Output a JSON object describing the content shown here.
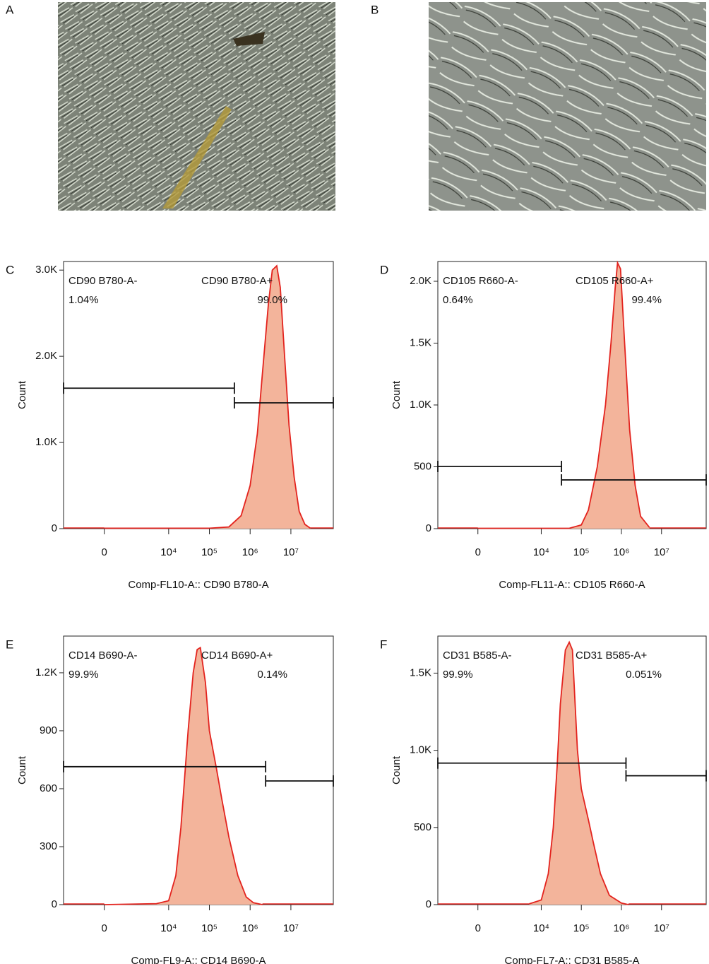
{
  "panels": [
    "A",
    "B"
  ],
  "chart_data": [
    {
      "type": "histogram",
      "panel": "C",
      "x_label": "Comp-FL10-A:: CD90 B780-A",
      "y_label": "Count",
      "color": "#e3231e",
      "fill": "#f3b49b",
      "xlim": [
        -2600,
        110000000
      ],
      "xticks": [
        0,
        {
          "value": 10000,
          "label": "10⁴"
        },
        {
          "value": 100000,
          "label": "10⁵"
        },
        {
          "value": 1000000,
          "label": "10⁶"
        },
        {
          "value": 10000000,
          "label": "10⁷"
        }
      ],
      "ylim": [
        0,
        3100
      ],
      "yticks": [
        0,
        {
          "value": 1000,
          "label": "1.0K"
        },
        {
          "value": 2000,
          "label": "2.0K"
        },
        {
          "value": 3000,
          "label": "3.0K"
        }
      ],
      "x": [
        0,
        100000,
        300000,
        600000,
        1000000,
        1500000,
        2000000,
        2800000,
        3500000,
        4500000,
        5500000,
        7000000,
        9000000,
        12000000,
        16000000,
        22000000,
        30000000
      ],
      "values": [
        5,
        5,
        20,
        150,
        500,
        1100,
        1800,
        2600,
        3000,
        3050,
        2800,
        2000,
        1200,
        600,
        200,
        50,
        5
      ],
      "gates": {
        "names": [
          "CD90 B780-A-",
          "CD90 B780-A+"
        ],
        "values": [
          1.04,
          99.0
        ],
        "value_labels": [
          "1.04%",
          "99.0%"
        ],
        "ranges": [
          [
            -2600,
            410000
          ],
          [
            410000,
            110000000
          ]
        ],
        "levels": [
          1630,
          1460
        ]
      }
    },
    {
      "type": "histogram",
      "panel": "D",
      "x_label": "Comp-FL11-A:: CD105 R660-A",
      "y_label": "Count",
      "color": "#e3231e",
      "fill": "#f3b49b",
      "xlim": [
        -2600,
        130000000
      ],
      "xticks": [
        0,
        {
          "value": 10000,
          "label": "10⁴"
        },
        {
          "value": 100000,
          "label": "10⁵"
        },
        {
          "value": 1000000,
          "label": "10⁶"
        },
        {
          "value": 10000000,
          "label": "10⁷"
        }
      ],
      "ylim": [
        0,
        2160
      ],
      "yticks": [
        0,
        500,
        {
          "value": 1000,
          "label": "1.0K"
        },
        {
          "value": 1500,
          "label": "1.5K"
        },
        {
          "value": 2000,
          "label": "2.0K"
        }
      ],
      "x": [
        0,
        50000,
        100000,
        150000,
        250000,
        400000,
        550000,
        700000,
        800000,
        950000,
        1200000,
        1600000,
        2200000,
        3000000,
        5000000
      ],
      "values": [
        3,
        3,
        30,
        150,
        500,
        1000,
        1500,
        1950,
        2150,
        2100,
        1500,
        800,
        350,
        100,
        10
      ],
      "gates": {
        "names": [
          "CD105 R660-A-",
          "CD105 R660-A+"
        ],
        "values": [
          0.64,
          99.4
        ],
        "value_labels": [
          "0.64%",
          "99.4%"
        ],
        "ranges": [
          [
            -2600,
            32000
          ],
          [
            32000,
            130000000
          ]
        ],
        "levels": [
          503,
          394
        ]
      }
    },
    {
      "type": "histogram",
      "panel": "E",
      "x_label": "Comp-FL9-A:: CD14 B690-A",
      "y_label": "Count",
      "color": "#e3231e",
      "fill": "#f3b49b",
      "xlim": [
        -2600,
        110000000
      ],
      "xticks": [
        0,
        {
          "value": 10000,
          "label": "10⁴"
        },
        {
          "value": 100000,
          "label": "10⁵"
        },
        {
          "value": 1000000,
          "label": "10⁶"
        },
        {
          "value": 10000000,
          "label": "10⁷"
        }
      ],
      "ylim": [
        0,
        1390
      ],
      "yticks": [
        0,
        300,
        600,
        900,
        {
          "value": 1200,
          "label": "1.2K"
        }
      ],
      "x": [
        0,
        5000,
        10000,
        15000,
        20000,
        30000,
        40000,
        50000,
        60000,
        80000,
        100000,
        150000,
        200000,
        300000,
        500000,
        800000,
        1200000,
        2000000
      ],
      "values": [
        0,
        5,
        20,
        150,
        400,
        900,
        1200,
        1320,
        1330,
        1150,
        900,
        700,
        550,
        350,
        150,
        40,
        10,
        0
      ],
      "gates": {
        "names": [
          "CD14 B690-A-",
          "CD14 B690-A+"
        ],
        "values": [
          99.9,
          0.14
        ],
        "value_labels": [
          "99.9%",
          "0.14%"
        ],
        "ranges": [
          [
            -2600,
            2400000
          ],
          [
            2400000,
            110000000
          ]
        ],
        "levels": [
          714,
          640
        ]
      }
    },
    {
      "type": "histogram",
      "panel": "F",
      "x_label": "Comp-FL7-A:: CD31 B585-A",
      "y_label": "Count",
      "color": "#e3231e",
      "fill": "#f3b49b",
      "xlim": [
        -2600,
        130000000
      ],
      "xticks": [
        0,
        {
          "value": 10000,
          "label": "10⁴"
        },
        {
          "value": 100000,
          "label": "10⁵"
        },
        {
          "value": 1000000,
          "label": "10⁶"
        },
        {
          "value": 10000000,
          "label": "10⁷"
        }
      ],
      "ylim": [
        0,
        1740
      ],
      "yticks": [
        0,
        500,
        {
          "value": 1000,
          "label": "1.0K"
        },
        {
          "value": 1500,
          "label": "1.5K"
        }
      ],
      "x": [
        5000,
        10000,
        15000,
        20000,
        25000,
        30000,
        40000,
        50000,
        60000,
        70000,
        80000,
        100000,
        150000,
        200000,
        300000,
        500000,
        1000000,
        1500000
      ],
      "values": [
        5,
        30,
        200,
        500,
        900,
        1300,
        1650,
        1700,
        1650,
        1300,
        1000,
        750,
        550,
        400,
        200,
        60,
        10,
        0
      ],
      "gates": {
        "names": [
          "CD31 B585-A-",
          "CD31 B585-A+"
        ],
        "values": [
          99.9,
          0.051
        ],
        "value_labels": [
          "99.9%",
          "0.051%"
        ],
        "ranges": [
          [
            -2600,
            1300000
          ],
          [
            1300000,
            130000000
          ]
        ],
        "levels": [
          917,
          835
        ]
      }
    }
  ]
}
